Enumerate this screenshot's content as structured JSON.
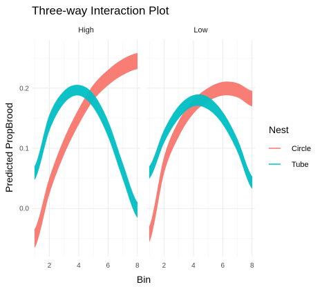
{
  "chart_data": {
    "type": "area",
    "title": "Three-way Interaction Plot",
    "xlabel": "Bin",
    "ylabel": "Predicted PropBrood",
    "facet_labels": [
      "High",
      "Low"
    ],
    "xlim": [
      0.8,
      8.2
    ],
    "ylim": [
      -0.08,
      0.28
    ],
    "x_ticks": [
      2,
      4,
      6,
      8
    ],
    "y_ticks": [
      0.0,
      0.1,
      0.2
    ],
    "y_tick_labels": [
      "0.0",
      "0.1",
      "0.2"
    ],
    "grid": true,
    "legend": {
      "title": "Nest",
      "position": "right",
      "entries": [
        {
          "label": "Circle",
          "color": "#F8766D"
        },
        {
          "label": "Tube",
          "color": "#00BFC4"
        }
      ]
    },
    "panels": [
      {
        "facet": "High",
        "series": [
          {
            "name": "Circle",
            "color": "#F8766D",
            "x": [
              1,
              2,
              3,
              4,
              5,
              6,
              7,
              8
            ],
            "lower": [
              -0.065,
              0.025,
              0.09,
              0.14,
              0.18,
              0.205,
              0.222,
              0.232
            ],
            "upper": [
              -0.035,
              0.05,
              0.115,
              0.165,
              0.205,
              0.23,
              0.248,
              0.258
            ]
          },
          {
            "name": "Tube",
            "color": "#00BFC4",
            "x": [
              1,
              2,
              3,
              4,
              5,
              6,
              7,
              8
            ],
            "lower": [
              0.048,
              0.13,
              0.175,
              0.188,
              0.168,
              0.12,
              0.05,
              -0.015
            ],
            "upper": [
              0.07,
              0.155,
              0.195,
              0.205,
              0.19,
              0.145,
              0.075,
              0.01
            ]
          }
        ]
      },
      {
        "facet": "Low",
        "series": [
          {
            "name": "Circle",
            "color": "#F8766D",
            "x": [
              1,
              2,
              3,
              4,
              5,
              6,
              7,
              8
            ],
            "lower": [
              -0.055,
              0.06,
              0.12,
              0.158,
              0.178,
              0.188,
              0.185,
              0.17
            ],
            "upper": [
              -0.03,
              0.085,
              0.145,
              0.18,
              0.2,
              0.21,
              0.208,
              0.195
            ]
          },
          {
            "name": "Tube",
            "color": "#00BFC4",
            "x": [
              1,
              2,
              3,
              4,
              5,
              6,
              7,
              8
            ],
            "lower": [
              0.05,
              0.11,
              0.15,
              0.17,
              0.165,
              0.14,
              0.095,
              0.033
            ],
            "upper": [
              0.07,
              0.13,
              0.17,
              0.188,
              0.185,
              0.16,
              0.115,
              0.053
            ]
          }
        ]
      }
    ]
  }
}
